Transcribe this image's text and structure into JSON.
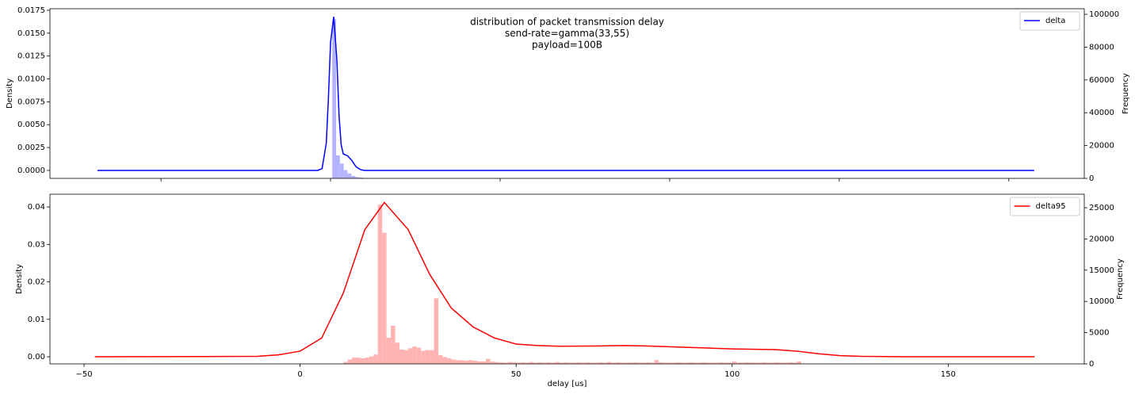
{
  "chart_data": [
    {
      "type": "density_histogram",
      "title": [
        "distribution of packet transmission delay",
        "send-rate=gamma(33,55)",
        "payload=100B"
      ],
      "ylabel": "Density",
      "y2label": "Frequency",
      "xlim": [
        -66.2,
        177.8
      ],
      "xticks": [
        -40,
        0,
        40,
        80,
        120,
        160
      ],
      "ylim": [
        -0.00087,
        0.01767
      ],
      "yticks": [
        {
          "value": 0,
          "label": "0.0000"
        },
        0.0025,
        {
          "value": 0.005,
          "label": "0.0050"
        },
        0.0075,
        {
          "value": 0.01,
          "label": "0.0100"
        },
        0.0125,
        {
          "value": 0.015,
          "label": "0.0150"
        },
        0.0175
      ],
      "y2lim": [
        0,
        103400
      ],
      "y2ticks": [
        0,
        20000,
        40000,
        60000,
        80000,
        100000
      ],
      "legend": "upper right",
      "x": [
        -55,
        -3,
        -2,
        -1,
        -0.5,
        0,
        0.75,
        1.5,
        2,
        2.5,
        3,
        4,
        5,
        6,
        7,
        8,
        20,
        166
      ],
      "series": [
        {
          "name": "delta",
          "color": "#0000ff",
          "values": [
            0,
            0,
            0.0002,
            0.003,
            0.008,
            0.014,
            0.0168,
            0.012,
            0.006,
            0.0028,
            0.0018,
            0.0016,
            0.0011,
            0.0004,
            0.0001,
            0,
            0,
            0
          ]
        }
      ],
      "histogram": {
        "color": "#b3b3ff",
        "axis": "y2",
        "bins": [
          0.4,
          1.3,
          2.2,
          3.1,
          4.0,
          4.9,
          5.8,
          6.7,
          7.6
        ],
        "counts": [
          97000,
          14000,
          9000,
          5000,
          3000,
          1500,
          800,
          400
        ]
      }
    },
    {
      "type": "density_histogram",
      "ylabel": "Density",
      "y2label": "Frequency",
      "xlabel": "delay [us]",
      "xlim": [
        -57.9,
        181.5
      ],
      "xticks": [
        {
          "value": -50,
          "label": "−50"
        },
        0,
        50,
        100,
        150
      ],
      "ylim": [
        -0.0019,
        0.0434
      ],
      "yticks": [
        {
          "value": 0,
          "label": "0.00"
        },
        0.01,
        0.02,
        0.03,
        0.04
      ],
      "y2lim": [
        0,
        27160
      ],
      "y2ticks": [
        0,
        5000,
        10000,
        15000,
        20000,
        25000
      ],
      "legend": "upper right",
      "x": [
        -47.5,
        -10,
        -5,
        0,
        5,
        10,
        15,
        19.5,
        25,
        30,
        35,
        40,
        45,
        50,
        55,
        60,
        70,
        75,
        80,
        90,
        100,
        110,
        115,
        120,
        125,
        130,
        140,
        170
      ],
      "series": [
        {
          "name": "delta95",
          "color": "#ff0000",
          "values": [
            0,
            0.0001,
            0.0005,
            0.0015,
            0.005,
            0.017,
            0.034,
            0.0412,
            0.034,
            0.022,
            0.013,
            0.008,
            0.005,
            0.0034,
            0.003,
            0.0028,
            0.0029,
            0.003,
            0.0029,
            0.0025,
            0.0021,
            0.0019,
            0.0015,
            0.0008,
            0.0003,
            0.0001,
            0,
            0
          ]
        }
      ],
      "histogram": {
        "color": "#ffb3b3",
        "axis": "y2",
        "bins": [
          10,
          11,
          12,
          13,
          14,
          15,
          16,
          17,
          18,
          19,
          20,
          21,
          22,
          23,
          24,
          25,
          26,
          27,
          28,
          29,
          30,
          31,
          32,
          33,
          34,
          35,
          36,
          37,
          38,
          39,
          40,
          41,
          42,
          43,
          44,
          45,
          46,
          47,
          48,
          49,
          50,
          51,
          52,
          53,
          54,
          55,
          56,
          57,
          58,
          59,
          60,
          61,
          62,
          63,
          64,
          65,
          66,
          67,
          68,
          69,
          70,
          71,
          72,
          73,
          74,
          75,
          76,
          77,
          78,
          79,
          80,
          81,
          82,
          83,
          84,
          85,
          86,
          87,
          88,
          89,
          90,
          91,
          92,
          93,
          94,
          95,
          96,
          97,
          98,
          99,
          100,
          101,
          102,
          103,
          104,
          105,
          106,
          107,
          108,
          109,
          110,
          111,
          112,
          113,
          114,
          115,
          116
        ],
        "counts": [
          300,
          700,
          1000,
          1000,
          900,
          1000,
          1200,
          1500,
          25500,
          21000,
          4200,
          6100,
          3400,
          2300,
          2200,
          2500,
          2800,
          2600,
          2100,
          2200,
          2200,
          10500,
          1400,
          1100,
          900,
          700,
          600,
          600,
          500,
          600,
          500,
          400,
          400,
          800,
          350,
          300,
          250,
          200,
          300,
          250,
          200,
          250,
          200,
          300,
          200,
          250,
          200,
          250,
          200,
          300,
          200,
          250,
          200,
          200,
          250,
          200,
          250,
          200,
          200,
          250,
          200,
          300,
          200,
          250,
          200,
          200,
          200,
          250,
          200,
          200,
          250,
          200,
          600,
          250,
          200,
          200,
          200,
          250,
          200,
          200,
          250,
          200,
          200,
          250,
          200,
          200,
          200,
          250,
          200,
          200,
          400,
          200,
          200,
          250,
          200,
          200,
          200,
          250,
          200,
          200,
          250,
          200,
          200,
          250,
          200,
          400
        ]
      }
    }
  ]
}
